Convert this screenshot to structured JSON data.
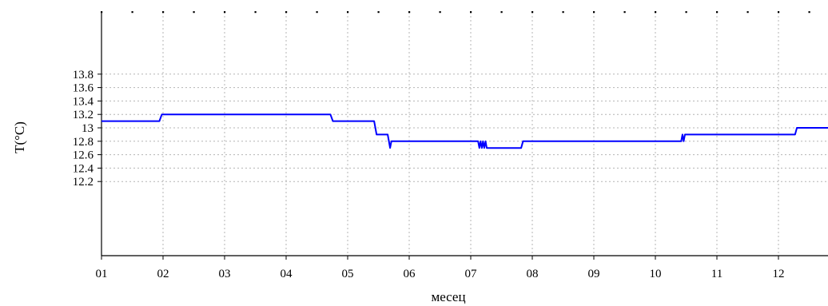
{
  "chart_data": {
    "type": "line",
    "title": "",
    "xlabel": "месец",
    "ylabel": "T(°C)",
    "x_tick_labels": [
      "01",
      "02",
      "03",
      "04",
      "05",
      "06",
      "07",
      "08",
      "09",
      "10",
      "11",
      "12"
    ],
    "y_tick_labels": [
      "13.8",
      "13.6",
      "13.4",
      "13.2",
      "13",
      "12.8",
      "12.6",
      "12.4",
      "12.2"
    ],
    "y_ticks": [
      13.8,
      13.6,
      13.4,
      13.2,
      13.0,
      12.8,
      12.6,
      12.4,
      12.2
    ],
    "xlim": [
      1,
      12.9
    ],
    "ylim": [
      12.05,
      13.9
    ],
    "grid": true,
    "series": [
      {
        "color": "#0000ff",
        "x": [
          1.0,
          1.94,
          1.98,
          2.02,
          4.72,
          4.76,
          4.8,
          5.43,
          5.47,
          5.5,
          5.65,
          5.67,
          5.69,
          5.71,
          5.73,
          5.75,
          7.12,
          7.14,
          7.16,
          7.18,
          7.2,
          7.22,
          7.24,
          7.26,
          7.28,
          7.82,
          7.85,
          10.42,
          10.44,
          10.46,
          10.48,
          10.5,
          12.27,
          12.3,
          12.9
        ],
        "y": [
          13.1,
          13.1,
          13.2,
          13.2,
          13.2,
          13.1,
          13.1,
          13.1,
          12.9,
          12.9,
          12.9,
          12.8,
          12.7,
          12.8,
          12.8,
          12.8,
          12.8,
          12.7,
          12.8,
          12.7,
          12.8,
          12.7,
          12.8,
          12.7,
          12.7,
          12.7,
          12.8,
          12.8,
          12.9,
          12.8,
          12.9,
          12.9,
          12.9,
          13.0,
          13.0
        ]
      }
    ]
  }
}
